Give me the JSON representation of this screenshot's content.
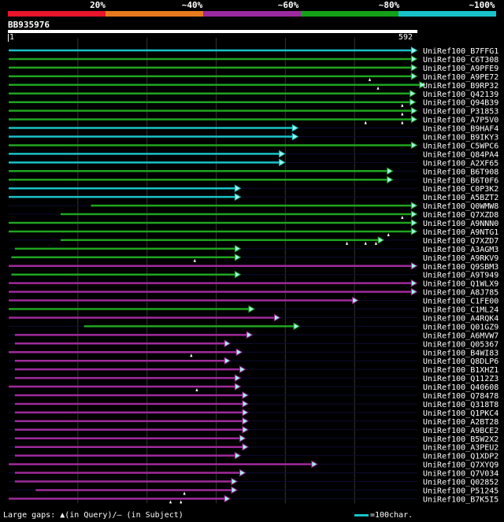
{
  "legend": {
    "labels": [
      "20%",
      "~40%",
      "~60%",
      "~80%",
      "~100%"
    ],
    "colors": [
      "#e8152b",
      "#e87a1e",
      "#9b2aa0",
      "#14a018",
      "#19c2c8"
    ]
  },
  "query": {
    "name": "BB935976",
    "start": "1",
    "end": "592"
  },
  "colors": {
    "cyan": "#19c2c8",
    "green": "#20a420",
    "magenta": "#a02a9c",
    "grid": "#333333",
    "light_cyan": "#9ff5e6"
  },
  "hits": [
    {
      "name": "UniRef100_B7FFG1",
      "start": 1,
      "end": 590,
      "color": "cyan",
      "gaps": []
    },
    {
      "name": "UniRef100_C6T308",
      "start": 1,
      "end": 590,
      "color": "green",
      "gaps": []
    },
    {
      "name": "UniRef100_A9PFE9",
      "start": 1,
      "end": 590,
      "color": "green",
      "gaps": []
    },
    {
      "name": "UniRef100_A9PE72",
      "start": 1,
      "end": 590,
      "color": "green",
      "gaps": [
        523
      ]
    },
    {
      "name": "UniRef100_B9RP32",
      "start": 1,
      "end": 602,
      "color": "green",
      "gaps": [
        535
      ]
    },
    {
      "name": "UniRef100_Q42139",
      "start": 1,
      "end": 588,
      "color": "green",
      "gaps": []
    },
    {
      "name": "UniRef100_Q94B39",
      "start": 1,
      "end": 588,
      "color": "green",
      "gaps": [
        570
      ]
    },
    {
      "name": "UniRef100_P31853",
      "start": 1,
      "end": 590,
      "color": "green",
      "gaps": [
        570
      ]
    },
    {
      "name": "UniRef100_A7P5V0",
      "start": 1,
      "end": 590,
      "color": "green",
      "gaps": [
        517,
        570
      ]
    },
    {
      "name": "UniRef100_B9HAF4",
      "start": 1,
      "end": 418,
      "color": "cyan",
      "gaps": []
    },
    {
      "name": "UniRef100_B9IKY3",
      "start": 1,
      "end": 418,
      "color": "cyan",
      "gaps": []
    },
    {
      "name": "UniRef100_C5WPC6",
      "start": 1,
      "end": 590,
      "color": "green",
      "gaps": []
    },
    {
      "name": "UniRef100_Q84PA4",
      "start": 1,
      "end": 399,
      "color": "cyan",
      "gaps": []
    },
    {
      "name": "UniRef100_A2XF65",
      "start": 1,
      "end": 399,
      "color": "cyan",
      "gaps": []
    },
    {
      "name": "UniRef100_B6T908",
      "start": 1,
      "end": 555,
      "color": "green",
      "gaps": []
    },
    {
      "name": "UniRef100_B6T0F6",
      "start": 1,
      "end": 555,
      "color": "green",
      "gaps": []
    },
    {
      "name": "UniRef100_C0P3K2",
      "start": 1,
      "end": 335,
      "color": "cyan",
      "gaps": []
    },
    {
      "name": "UniRef100_A5BZT2",
      "start": 1,
      "end": 335,
      "color": "cyan",
      "gaps": []
    },
    {
      "name": "UniRef100_Q0WMW8",
      "start": 120,
      "end": 590,
      "color": "green",
      "gaps": []
    },
    {
      "name": "UniRef100_Q7XZD8",
      "start": 76,
      "end": 590,
      "color": "green",
      "gaps": [
        570
      ]
    },
    {
      "name": "UniRef100_A9NNN0",
      "start": 1,
      "end": 590,
      "color": "green",
      "gaps": []
    },
    {
      "name": "UniRef100_A9NTG1",
      "start": 1,
      "end": 590,
      "color": "green",
      "gaps": [
        550
      ]
    },
    {
      "name": "UniRef100_Q7XZD7",
      "start": 76,
      "end": 542,
      "color": "green",
      "gaps": [
        490,
        517,
        532
      ]
    },
    {
      "name": "UniRef100_A3AGM3",
      "start": 10,
      "end": 335,
      "color": "green",
      "gaps": []
    },
    {
      "name": "UniRef100_A9RKV9",
      "start": 5,
      "end": 335,
      "color": "green",
      "gaps": [
        270
      ]
    },
    {
      "name": "UniRef100_Q9SBM3",
      "start": 1,
      "end": 590,
      "color": "magenta",
      "gaps": []
    },
    {
      "name": "UniRef100_A9T949",
      "start": 5,
      "end": 335,
      "color": "green",
      "gaps": []
    },
    {
      "name": "UniRef100_Q1WLX9",
      "start": 1,
      "end": 590,
      "color": "magenta",
      "gaps": []
    },
    {
      "name": "UniRef100_A8J785",
      "start": 1,
      "end": 590,
      "color": "magenta",
      "gaps": []
    },
    {
      "name": "UniRef100_C1FE00",
      "start": 1,
      "end": 505,
      "color": "magenta",
      "gaps": []
    },
    {
      "name": "UniRef100_C1ML24",
      "start": 1,
      "end": 355,
      "color": "green",
      "gaps": []
    },
    {
      "name": "UniRef100_A4RQK4",
      "start": 1,
      "end": 392,
      "color": "magenta",
      "gaps": []
    },
    {
      "name": "UniRef100_Q01GZ9",
      "start": 110,
      "end": 420,
      "color": "green",
      "gaps": []
    },
    {
      "name": "UniRef100_A6MVW7",
      "start": 10,
      "end": 352,
      "color": "magenta",
      "gaps": []
    },
    {
      "name": "UniRef100_Q05367",
      "start": 10,
      "end": 320,
      "color": "magenta",
      "gaps": []
    },
    {
      "name": "UniRef100_B4WI83",
      "start": 1,
      "end": 337,
      "color": "magenta",
      "gaps": [
        265
      ]
    },
    {
      "name": "UniRef100_Q8DLP6",
      "start": 10,
      "end": 320,
      "color": "magenta",
      "gaps": []
    },
    {
      "name": "UniRef100_B1XHZ1",
      "start": 10,
      "end": 342,
      "color": "magenta",
      "gaps": []
    },
    {
      "name": "UniRef100_Q112Z3",
      "start": 10,
      "end": 335,
      "color": "magenta",
      "gaps": []
    },
    {
      "name": "UniRef100_Q40608",
      "start": 1,
      "end": 335,
      "color": "magenta",
      "gaps": [
        273
      ]
    },
    {
      "name": "UniRef100_Q78478",
      "start": 10,
      "end": 346,
      "color": "magenta",
      "gaps": []
    },
    {
      "name": "UniRef100_Q318T8",
      "start": 10,
      "end": 346,
      "color": "magenta",
      "gaps": []
    },
    {
      "name": "UniRef100_Q1PKC4",
      "start": 10,
      "end": 346,
      "color": "magenta",
      "gaps": []
    },
    {
      "name": "UniRef100_A2BT28",
      "start": 10,
      "end": 346,
      "color": "magenta",
      "gaps": []
    },
    {
      "name": "UniRef100_A9BCE2",
      "start": 10,
      "end": 346,
      "color": "magenta",
      "gaps": []
    },
    {
      "name": "UniRef100_B5W2X2",
      "start": 10,
      "end": 342,
      "color": "magenta",
      "gaps": []
    },
    {
      "name": "UniRef100_A3PEU2",
      "start": 10,
      "end": 346,
      "color": "magenta",
      "gaps": []
    },
    {
      "name": "UniRef100_Q1XDP2",
      "start": 10,
      "end": 335,
      "color": "magenta",
      "gaps": []
    },
    {
      "name": "UniRef100_Q7XYQ9",
      "start": 1,
      "end": 446,
      "color": "magenta",
      "gaps": []
    },
    {
      "name": "UniRef100_Q7V034",
      "start": 10,
      "end": 342,
      "color": "magenta",
      "gaps": []
    },
    {
      "name": "UniRef100_Q02852",
      "start": 10,
      "end": 330,
      "color": "magenta",
      "gaps": []
    },
    {
      "name": "UniRef100_P51245",
      "start": 40,
      "end": 330,
      "color": "magenta",
      "gaps": [
        255
      ]
    },
    {
      "name": "UniRef100_B7K5I5",
      "start": 1,
      "end": 320,
      "color": "magenta",
      "gaps": [
        235,
        250
      ]
    }
  ],
  "footer": {
    "gaps_note": "Large gaps: ▲(in Query)/— (in Subject)",
    "scale_note": "=100char."
  }
}
